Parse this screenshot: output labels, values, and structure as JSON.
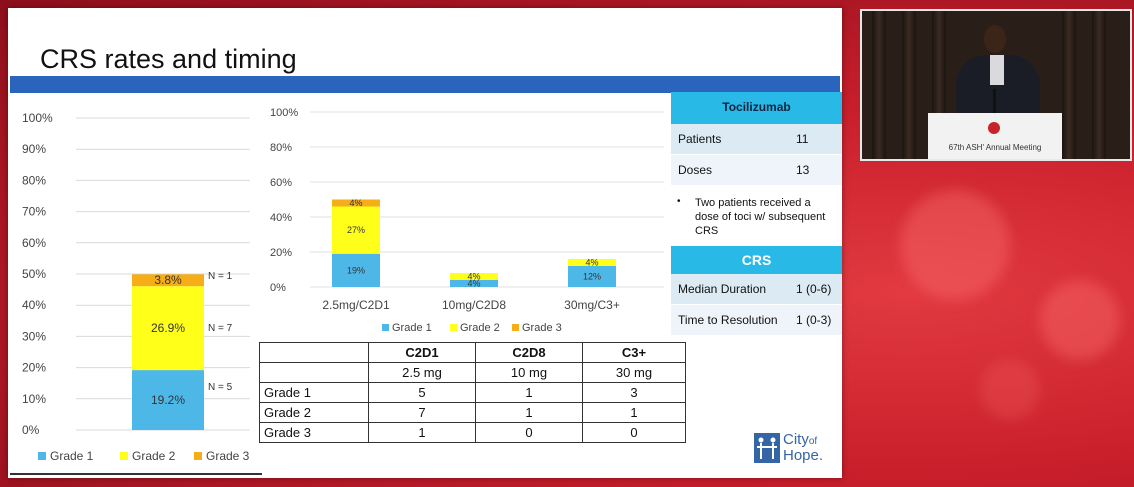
{
  "slide": {
    "title": "CRS rates and timing"
  },
  "stack_chart": {
    "ytick_labels": [
      "0%",
      "10%",
      "20%",
      "30%",
      "40%",
      "50%",
      "60%",
      "70%",
      "80%",
      "90%",
      "100%"
    ],
    "n_labels": [
      "N = 5",
      "N = 7",
      "N = 1"
    ],
    "legend": [
      "Grade 1",
      "Grade 2",
      "Grade 3"
    ]
  },
  "dose_chart": {
    "ytick_labels": [
      "0%",
      "20%",
      "40%",
      "60%",
      "80%",
      "100%"
    ],
    "categories": [
      "2.5mg/C2D1",
      "10mg/C2D8",
      "30mg/C3+"
    ],
    "legend": [
      "Grade 1",
      "Grade 2",
      "Grade 3"
    ]
  },
  "chart_data": [
    {
      "type": "bar",
      "stacked": true,
      "categories": [
        ""
      ],
      "series": [
        {
          "name": "Grade 1",
          "values": [
            19.2
          ],
          "labels": [
            "19.2%"
          ],
          "color": "#4db8e8"
        },
        {
          "name": "Grade 2",
          "values": [
            26.9
          ],
          "labels": [
            "26.9%"
          ],
          "color": "#ffff1a"
        },
        {
          "name": "Grade 3",
          "values": [
            3.8
          ],
          "labels": [
            "3.8%"
          ],
          "color": "#f5ad18"
        }
      ],
      "ylim": [
        0,
        100
      ],
      "grid": true,
      "legend_position": "bottom"
    },
    {
      "type": "bar",
      "stacked": true,
      "categories": [
        "2.5mg/C2D1",
        "10mg/C2D8",
        "30mg/C3+"
      ],
      "series": [
        {
          "name": "Grade 1",
          "values": [
            19,
            4,
            12
          ],
          "labels": [
            "19%",
            "4%",
            "12%"
          ],
          "color": "#4db8e8"
        },
        {
          "name": "Grade 2",
          "values": [
            27,
            4,
            4
          ],
          "labels": [
            "27%",
            "4%",
            "4%"
          ],
          "color": "#ffff1a"
        },
        {
          "name": "Grade 3",
          "values": [
            4,
            0,
            0
          ],
          "labels": [
            "4%",
            "",
            ""
          ],
          "color": "#f5ad18"
        }
      ],
      "ylim": [
        0,
        100
      ],
      "grid": true,
      "legend_position": "bottom"
    }
  ],
  "dose_table": {
    "header1": [
      "",
      "C2D1",
      "C2D8",
      "C3+"
    ],
    "header2": [
      "",
      "2.5 mg",
      "10 mg",
      "30 mg"
    ],
    "rows": [
      {
        "label": "Grade 1",
        "values": [
          "5",
          "1",
          "3"
        ]
      },
      {
        "label": "Grade 2",
        "values": [
          "7",
          "1",
          "1"
        ]
      },
      {
        "label": "Grade 3",
        "values": [
          "1",
          "0",
          "0"
        ]
      }
    ]
  },
  "toci_panel": {
    "title": "Tocilizumab",
    "rows": [
      {
        "label": "Patients",
        "value": "11"
      },
      {
        "label": "Doses",
        "value": "13"
      }
    ],
    "note": "Two patients received a dose of toci w/ subsequent CRS",
    "crs_title": "CRS",
    "crs_rows": [
      {
        "label": "Median Duration",
        "value": "1 (0-6)"
      },
      {
        "label": "Time to Resolution",
        "value": "1 (0-3)"
      }
    ]
  },
  "logo": {
    "line1": "City",
    "line1_small": "of",
    "line2": "Hope."
  },
  "video": {
    "podium_text": "67th ASH' Annual Meeting"
  }
}
